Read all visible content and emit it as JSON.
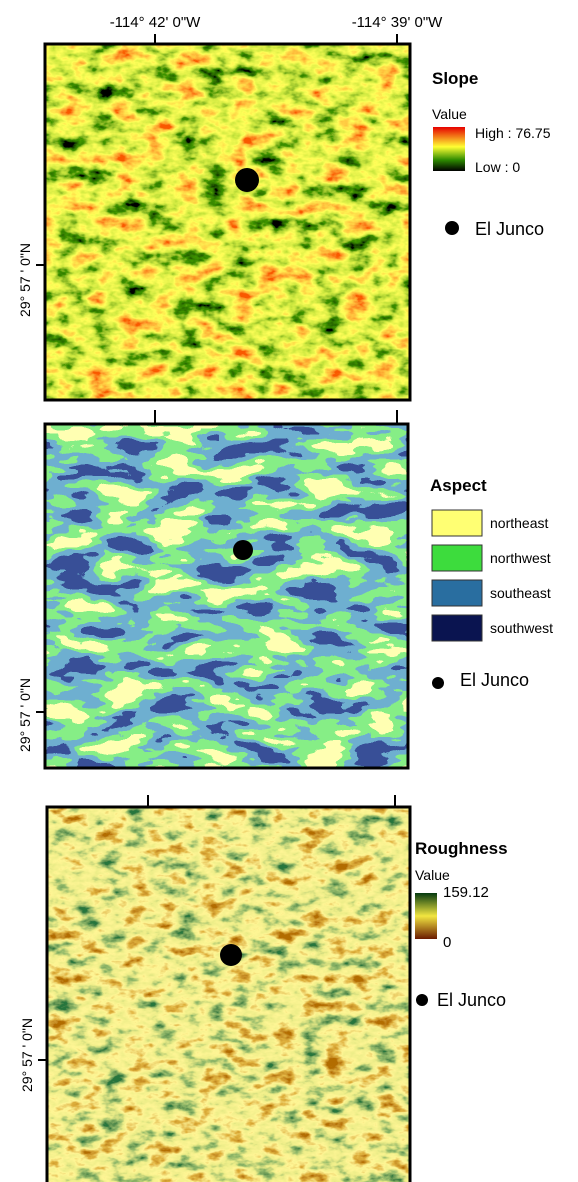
{
  "panels": [
    {
      "x_ticks": [
        "-114° 42' 0\"W",
        "-114° 39' 0\"W"
      ],
      "y_tick": "29° 57 ' 0\"N",
      "legend": {
        "title": "Slope",
        "subtitle": "Value",
        "high": "High : 76.75",
        "low": "Low : 0"
      },
      "point_label": "El Junco"
    },
    {
      "y_tick": "29° 57 ' 0\"N",
      "legend": {
        "title": "Aspect",
        "classes": [
          "northeast",
          "northwest",
          "southeast",
          "southwest"
        ]
      },
      "point_label": "El Junco"
    },
    {
      "y_tick": "29° 57 ' 0\"N",
      "legend": {
        "title": "Roughness",
        "subtitle": "Value",
        "high": "159.12",
        "low": "0"
      },
      "point_label": "El Junco"
    }
  ]
}
